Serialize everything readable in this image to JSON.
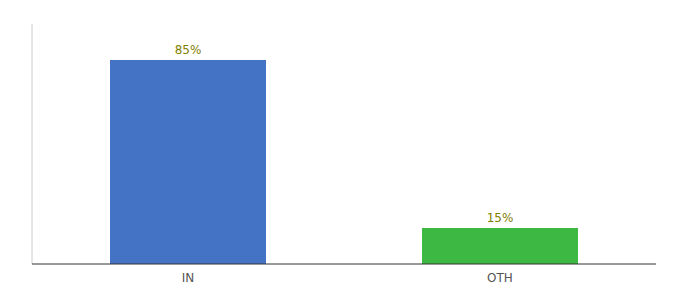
{
  "chart_data": {
    "type": "bar",
    "categories": [
      "IN",
      "OTH"
    ],
    "values": [
      85,
      15
    ],
    "value_labels": [
      "85%",
      "15%"
    ],
    "colors": [
      "#4472c4",
      "#3cb843"
    ],
    "ylim": [
      0,
      100
    ],
    "data_labels": true,
    "tick_labels": "x",
    "grid": false
  }
}
